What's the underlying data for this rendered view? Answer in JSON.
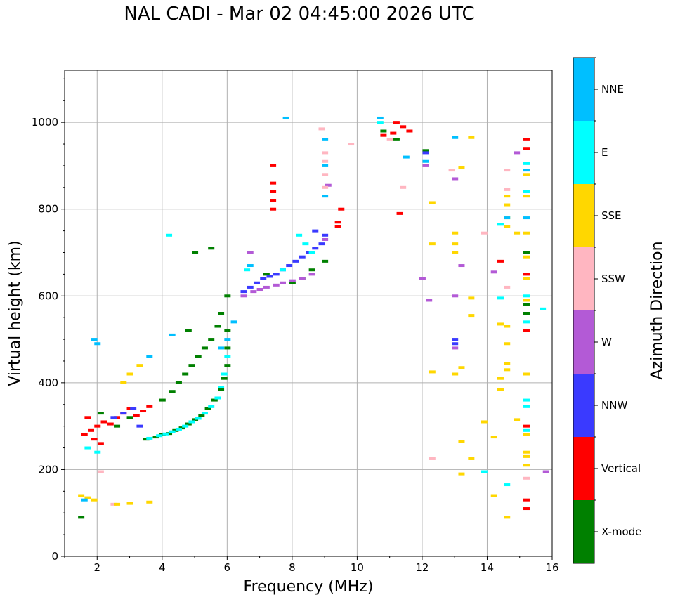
{
  "chart_data": {
    "type": "scatter",
    "title": "NAL CADI - Mar 02 04:45:00 2026 UTC",
    "xlabel": "Frequency (MHz)",
    "ylabel": "Virtual height (km)",
    "xlim": [
      1,
      16
    ],
    "ylim": [
      0,
      1120
    ],
    "x_ticks": [
      "2",
      "4",
      "6",
      "8",
      "10",
      "12",
      "14",
      "16"
    ],
    "y_ticks": [
      "0",
      "200",
      "400",
      "600",
      "800",
      "1000"
    ],
    "grid": true,
    "colorbar": {
      "label": "Azimuth Direction",
      "categories": [
        {
          "name": "X-mode",
          "color": "#008000"
        },
        {
          "name": "Vertical",
          "color": "#ff0000"
        },
        {
          "name": "NNW",
          "color": "#3a3aff"
        },
        {
          "name": "W",
          "color": "#b35ad6"
        },
        {
          "name": "SSW",
          "color": "#ffb6c1"
        },
        {
          "name": "SSE",
          "color": "#ffd700"
        },
        {
          "name": "E",
          "color": "#00ffff"
        },
        {
          "name": "NNE",
          "color": "#00bfff"
        }
      ]
    },
    "series": [
      {
        "name": "X-mode",
        "points": [
          [
            3.5,
            270
          ],
          [
            3.8,
            275
          ],
          [
            4.0,
            280
          ],
          [
            4.2,
            283
          ],
          [
            4.4,
            290
          ],
          [
            4.6,
            296
          ],
          [
            4.8,
            305
          ],
          [
            5.0,
            315
          ],
          [
            5.2,
            325
          ],
          [
            5.4,
            340
          ],
          [
            5.6,
            360
          ],
          [
            5.8,
            385
          ],
          [
            5.9,
            410
          ],
          [
            6.0,
            440
          ],
          [
            6.0,
            480
          ],
          [
            6.0,
            520
          ],
          [
            4.0,
            360
          ],
          [
            4.3,
            380
          ],
          [
            4.5,
            400
          ],
          [
            4.7,
            420
          ],
          [
            4.9,
            440
          ],
          [
            5.1,
            460
          ],
          [
            5.3,
            480
          ],
          [
            5.5,
            500
          ],
          [
            5.7,
            530
          ],
          [
            5.8,
            560
          ],
          [
            6.0,
            600
          ],
          [
            4.8,
            520
          ],
          [
            5.0,
            700
          ],
          [
            5.5,
            710
          ],
          [
            7.2,
            650
          ],
          [
            8.0,
            630
          ],
          [
            8.3,
            640
          ],
          [
            8.6,
            660
          ],
          [
            9.0,
            680
          ],
          [
            10.8,
            980
          ],
          [
            11.2,
            960
          ],
          [
            12.1,
            935
          ],
          [
            15.2,
            700
          ],
          [
            15.2,
            580
          ],
          [
            15.2,
            560
          ],
          [
            1.5,
            90
          ],
          [
            2.1,
            330
          ],
          [
            2.6,
            300
          ],
          [
            3.0,
            320
          ]
        ]
      },
      {
        "name": "Vertical",
        "points": [
          [
            1.6,
            280
          ],
          [
            1.8,
            290
          ],
          [
            2.0,
            300
          ],
          [
            2.2,
            310
          ],
          [
            2.4,
            305
          ],
          [
            2.6,
            320
          ],
          [
            2.8,
            330
          ],
          [
            3.0,
            340
          ],
          [
            3.2,
            325
          ],
          [
            3.4,
            335
          ],
          [
            3.6,
            345
          ],
          [
            1.7,
            320
          ],
          [
            1.9,
            270
          ],
          [
            2.1,
            260
          ],
          [
            7.4,
            800
          ],
          [
            7.4,
            820
          ],
          [
            7.4,
            840
          ],
          [
            7.4,
            860
          ],
          [
            7.4,
            900
          ],
          [
            9.4,
            760
          ],
          [
            9.4,
            770
          ],
          [
            9.5,
            800
          ],
          [
            10.8,
            970
          ],
          [
            11.1,
            975
          ],
          [
            11.2,
            1000
          ],
          [
            11.4,
            990
          ],
          [
            11.6,
            980
          ],
          [
            11.3,
            790
          ],
          [
            14.4,
            680
          ],
          [
            15.2,
            650
          ],
          [
            15.2,
            520
          ],
          [
            15.2,
            300
          ],
          [
            15.2,
            130
          ],
          [
            15.2,
            110
          ],
          [
            15.2,
            960
          ],
          [
            15.2,
            940
          ]
        ]
      },
      {
        "name": "NNW",
        "points": [
          [
            6.5,
            610
          ],
          [
            6.7,
            620
          ],
          [
            6.9,
            630
          ],
          [
            7.1,
            640
          ],
          [
            7.3,
            645
          ],
          [
            7.5,
            650
          ],
          [
            7.7,
            660
          ],
          [
            7.9,
            670
          ],
          [
            8.1,
            680
          ],
          [
            8.3,
            690
          ],
          [
            8.5,
            700
          ],
          [
            8.7,
            710
          ],
          [
            8.9,
            720
          ],
          [
            9.0,
            740
          ],
          [
            2.5,
            320
          ],
          [
            2.8,
            330
          ],
          [
            3.1,
            340
          ],
          [
            3.3,
            300
          ],
          [
            12.1,
            930
          ],
          [
            13.0,
            500
          ],
          [
            13.0,
            490
          ],
          [
            8.7,
            750
          ]
        ]
      },
      {
        "name": "W",
        "points": [
          [
            6.5,
            600
          ],
          [
            6.8,
            610
          ],
          [
            7.0,
            615
          ],
          [
            7.2,
            620
          ],
          [
            7.5,
            625
          ],
          [
            7.7,
            630
          ],
          [
            8.0,
            635
          ],
          [
            8.3,
            640
          ],
          [
            8.6,
            650
          ],
          [
            9.0,
            730
          ],
          [
            9.1,
            855
          ],
          [
            6.7,
            700
          ],
          [
            12.0,
            640
          ],
          [
            12.2,
            590
          ],
          [
            12.1,
            900
          ],
          [
            13.0,
            870
          ],
          [
            13.0,
            600
          ],
          [
            13.0,
            480
          ],
          [
            13.2,
            670
          ],
          [
            14.2,
            655
          ],
          [
            14.9,
            930
          ],
          [
            15.8,
            195
          ]
        ]
      },
      {
        "name": "SSW",
        "points": [
          [
            9.0,
            930
          ],
          [
            9.0,
            910
          ],
          [
            9.0,
            880
          ],
          [
            9.0,
            850
          ],
          [
            8.9,
            985
          ],
          [
            9.8,
            950
          ],
          [
            11.0,
            960
          ],
          [
            11.4,
            850
          ],
          [
            12.9,
            890
          ],
          [
            13.9,
            745
          ],
          [
            14.6,
            890
          ],
          [
            14.6,
            845
          ],
          [
            14.6,
            620
          ],
          [
            15.2,
            180
          ],
          [
            2.5,
            120
          ],
          [
            2.1,
            195
          ],
          [
            12.3,
            225
          ]
        ]
      },
      {
        "name": "SSE",
        "points": [
          [
            1.5,
            140
          ],
          [
            1.7,
            135
          ],
          [
            1.9,
            130
          ],
          [
            2.6,
            120
          ],
          [
            3.0,
            122
          ],
          [
            3.6,
            125
          ],
          [
            2.8,
            400
          ],
          [
            3.0,
            420
          ],
          [
            3.3,
            440
          ],
          [
            12.3,
            815
          ],
          [
            12.3,
            720
          ],
          [
            12.3,
            425
          ],
          [
            13.0,
            745
          ],
          [
            13.0,
            720
          ],
          [
            13.0,
            700
          ],
          [
            13.0,
            420
          ],
          [
            13.2,
            435
          ],
          [
            13.2,
            895
          ],
          [
            13.2,
            265
          ],
          [
            13.2,
            190
          ],
          [
            13.5,
            555
          ],
          [
            13.5,
            965
          ],
          [
            13.5,
            225
          ],
          [
            13.5,
            595
          ],
          [
            13.9,
            310
          ],
          [
            14.2,
            140
          ],
          [
            14.2,
            275
          ],
          [
            14.4,
            410
          ],
          [
            14.4,
            385
          ],
          [
            14.4,
            535
          ],
          [
            14.6,
            830
          ],
          [
            14.6,
            810
          ],
          [
            14.6,
            780
          ],
          [
            14.6,
            760
          ],
          [
            14.6,
            530
          ],
          [
            14.6,
            490
          ],
          [
            14.6,
            445
          ],
          [
            14.6,
            430
          ],
          [
            14.6,
            90
          ],
          [
            14.9,
            745
          ],
          [
            14.9,
            315
          ],
          [
            15.2,
            880
          ],
          [
            15.2,
            830
          ],
          [
            15.2,
            745
          ],
          [
            15.2,
            690
          ],
          [
            15.2,
            640
          ],
          [
            15.2,
            590
          ],
          [
            15.2,
            420
          ],
          [
            15.2,
            280
          ],
          [
            15.2,
            240
          ],
          [
            15.2,
            230
          ],
          [
            15.2,
            210
          ]
        ]
      },
      {
        "name": "E",
        "points": [
          [
            3.6,
            272
          ],
          [
            3.9,
            278
          ],
          [
            4.1,
            282
          ],
          [
            4.3,
            287
          ],
          [
            4.5,
            293
          ],
          [
            4.7,
            300
          ],
          [
            4.9,
            310
          ],
          [
            5.1,
            318
          ],
          [
            5.3,
            330
          ],
          [
            5.5,
            345
          ],
          [
            5.7,
            365
          ],
          [
            5.8,
            390
          ],
          [
            5.9,
            420
          ],
          [
            6.0,
            460
          ],
          [
            1.7,
            250
          ],
          [
            2.0,
            240
          ],
          [
            4.2,
            740
          ],
          [
            6.6,
            660
          ],
          [
            7.7,
            660
          ],
          [
            8.4,
            720
          ],
          [
            8.6,
            700
          ],
          [
            8.2,
            740
          ],
          [
            10.7,
            1000
          ],
          [
            14.4,
            765
          ],
          [
            14.4,
            595
          ],
          [
            13.9,
            195
          ],
          [
            14.6,
            165
          ],
          [
            15.2,
            905
          ],
          [
            15.2,
            840
          ],
          [
            15.2,
            600
          ],
          [
            15.2,
            540
          ],
          [
            15.2,
            360
          ],
          [
            15.2,
            345
          ],
          [
            15.2,
            290
          ],
          [
            15.7,
            570
          ]
        ]
      },
      {
        "name": "NNE",
        "points": [
          [
            1.9,
            500
          ],
          [
            2.0,
            490
          ],
          [
            3.6,
            460
          ],
          [
            4.3,
            510
          ],
          [
            5.8,
            480
          ],
          [
            6.0,
            500
          ],
          [
            6.2,
            540
          ],
          [
            6.7,
            670
          ],
          [
            7.8,
            1010
          ],
          [
            9.0,
            960
          ],
          [
            9.0,
            900
          ],
          [
            9.0,
            830
          ],
          [
            10.7,
            1010
          ],
          [
            11.5,
            920
          ],
          [
            12.1,
            910
          ],
          [
            13.0,
            965
          ],
          [
            14.6,
            780
          ],
          [
            15.2,
            890
          ],
          [
            15.2,
            780
          ],
          [
            1.6,
            130
          ]
        ]
      }
    ]
  }
}
